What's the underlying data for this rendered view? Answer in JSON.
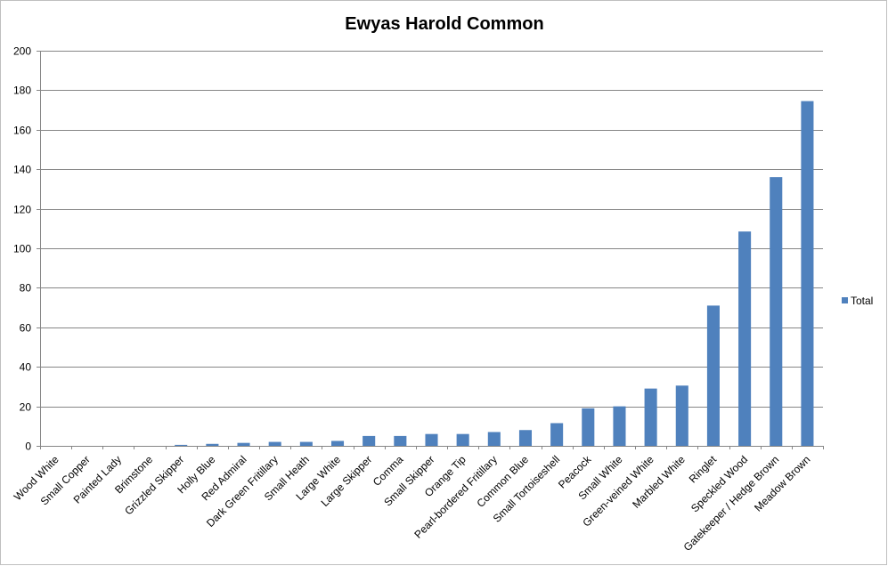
{
  "chart_data": {
    "type": "bar",
    "title": "Ewyas Harold Common",
    "xlabel": "",
    "ylabel": "",
    "ylim": [
      0,
      200
    ],
    "yticks": [
      0,
      20,
      40,
      60,
      80,
      100,
      120,
      140,
      160,
      180,
      200
    ],
    "grid": true,
    "legend_position": "right",
    "categories": [
      "Wood White",
      "Small Copper",
      "Painted Lady",
      "Brimstone",
      "Grizzled Skipper",
      "Holly Blue",
      "Red Admiral",
      "Dark Green Fritillary",
      "Small Heath",
      "Large White",
      "Large Skipper",
      "Comma",
      "Small Skipper",
      "Orange Tip",
      "Pearl-bordered Fritillary",
      "Common Blue",
      "Small Tortoiseshell",
      "Peacock",
      "Small White",
      "Green-veined White",
      "Marbled White",
      "Ringlet",
      "Speckled Wood",
      "Gatekeeper / Hedge Brown",
      "Meadow Brown"
    ],
    "series": [
      {
        "name": "Total",
        "color": "#4f81bd",
        "values": [
          0,
          0,
          0,
          0,
          0.5,
          1,
          1.5,
          2,
          2,
          2.5,
          5,
          5,
          6,
          6,
          7,
          8,
          11.5,
          19,
          20,
          29,
          30.5,
          71,
          108.5,
          136,
          174.5
        ]
      }
    ]
  }
}
